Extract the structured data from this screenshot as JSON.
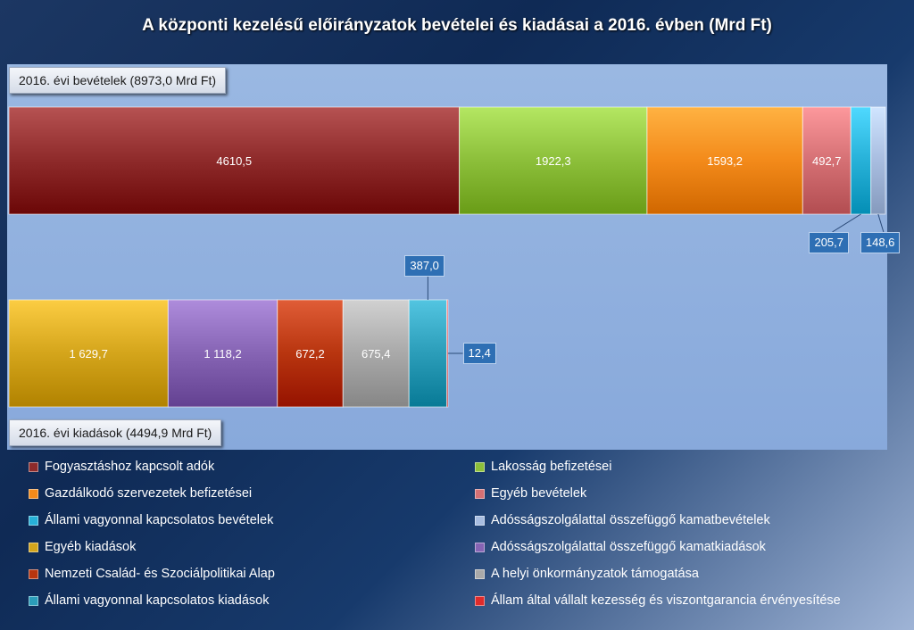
{
  "chart_data": {
    "type": "bar",
    "title": "A központi kezelésű előirányzatok bevételei és kiadásai a 2016. évben (Mrd Ft)",
    "stacked": true,
    "orientation": "horizontal",
    "bars": [
      {
        "label": "2016. évi bevételek (8973,0 Mrd Ft)",
        "segments": [
          {
            "name": "Fogyasztáshoz kapcsolt adók",
            "value": 4610.5,
            "display": "4610,5",
            "color": "#8e2a2a"
          },
          {
            "name": "Lakosság befizetései",
            "value": 1922.3,
            "display": "1922,3",
            "color": "#8cbf3a"
          },
          {
            "name": "Gazdálkodó szervezetek befizetései",
            "value": 1593.2,
            "display": "1593,2",
            "color": "#f38a1a"
          },
          {
            "name": "Egyéb bevételek",
            "value": 492.7,
            "display": "492,7",
            "color": "#d57074"
          },
          {
            "name": "Állami vagyonnal kapcsolatos bevételek",
            "value": 205.7,
            "display": "205,7",
            "color": "#27b1d8"
          },
          {
            "name": "Adósságszolgálattal összefüggő kamatbevételek",
            "value": 148.6,
            "display": "148,6",
            "color": "#a8bde0"
          }
        ]
      },
      {
        "label": "2016. évi kiadások (4494,9 Mrd Ft)",
        "segments": [
          {
            "name": "Egyéb kiadások",
            "value": 1629.7,
            "display": "1 629,7",
            "color": "#d4a51b"
          },
          {
            "name": "Adósságszolgálattal összefüggő kamatkiadások",
            "value": 1118.2,
            "display": "1 118,2",
            "color": "#8664b4"
          },
          {
            "name": "Nemzeti Család- és Szociálpolitikai Alap",
            "value": 672.2,
            "display": "672,2",
            "color": "#b8350f"
          },
          {
            "name": "A helyi önkormányzatok támogatása",
            "value": 675.4,
            "display": "675,4",
            "color": "#a9a9a9"
          },
          {
            "name": "Állami vagyonnal kapcsolatos kiadások",
            "value": 387.0,
            "display": "387,0",
            "color": "#2b9db9"
          },
          {
            "name": "Állam által vállalt kezesség és viszontgarancia érvényesítése",
            "value": 12.4,
            "display": "12,4",
            "color": "#e02b2b"
          }
        ]
      }
    ],
    "legend": [
      {
        "name": "Fogyasztáshoz kapcsolt adók",
        "color": "#8e2a2a"
      },
      {
        "name": "Lakosság befizetései",
        "color": "#8cbf3a"
      },
      {
        "name": "Gazdálkodó szervezetek befizetései",
        "color": "#f38a1a"
      },
      {
        "name": "Egyéb bevételek",
        "color": "#d57074"
      },
      {
        "name": "Állami vagyonnal kapcsolatos bevételek",
        "color": "#27b1d8"
      },
      {
        "name": "Adósságszolgálattal összefüggő kamatbevételek",
        "color": "#a8bde0"
      },
      {
        "name": "Egyéb kiadások",
        "color": "#d4a51b"
      },
      {
        "name": "Adósságszolgálattal összefüggő kamatkiadások",
        "color": "#8664b4"
      },
      {
        "name": "Nemzeti Család- és Szociálpolitikai Alap",
        "color": "#b8350f"
      },
      {
        "name": "A helyi önkormányzatok támogatása",
        "color": "#a9a9a9"
      },
      {
        "name": "Állami vagyonnal kapcsolatos kiadások",
        "color": "#2b9db9"
      },
      {
        "name": "Állam által vállalt kezesség és viszontgarancia érvényesítése",
        "color": "#e02b2b"
      }
    ],
    "legend_position": "bottom",
    "grid": false
  }
}
